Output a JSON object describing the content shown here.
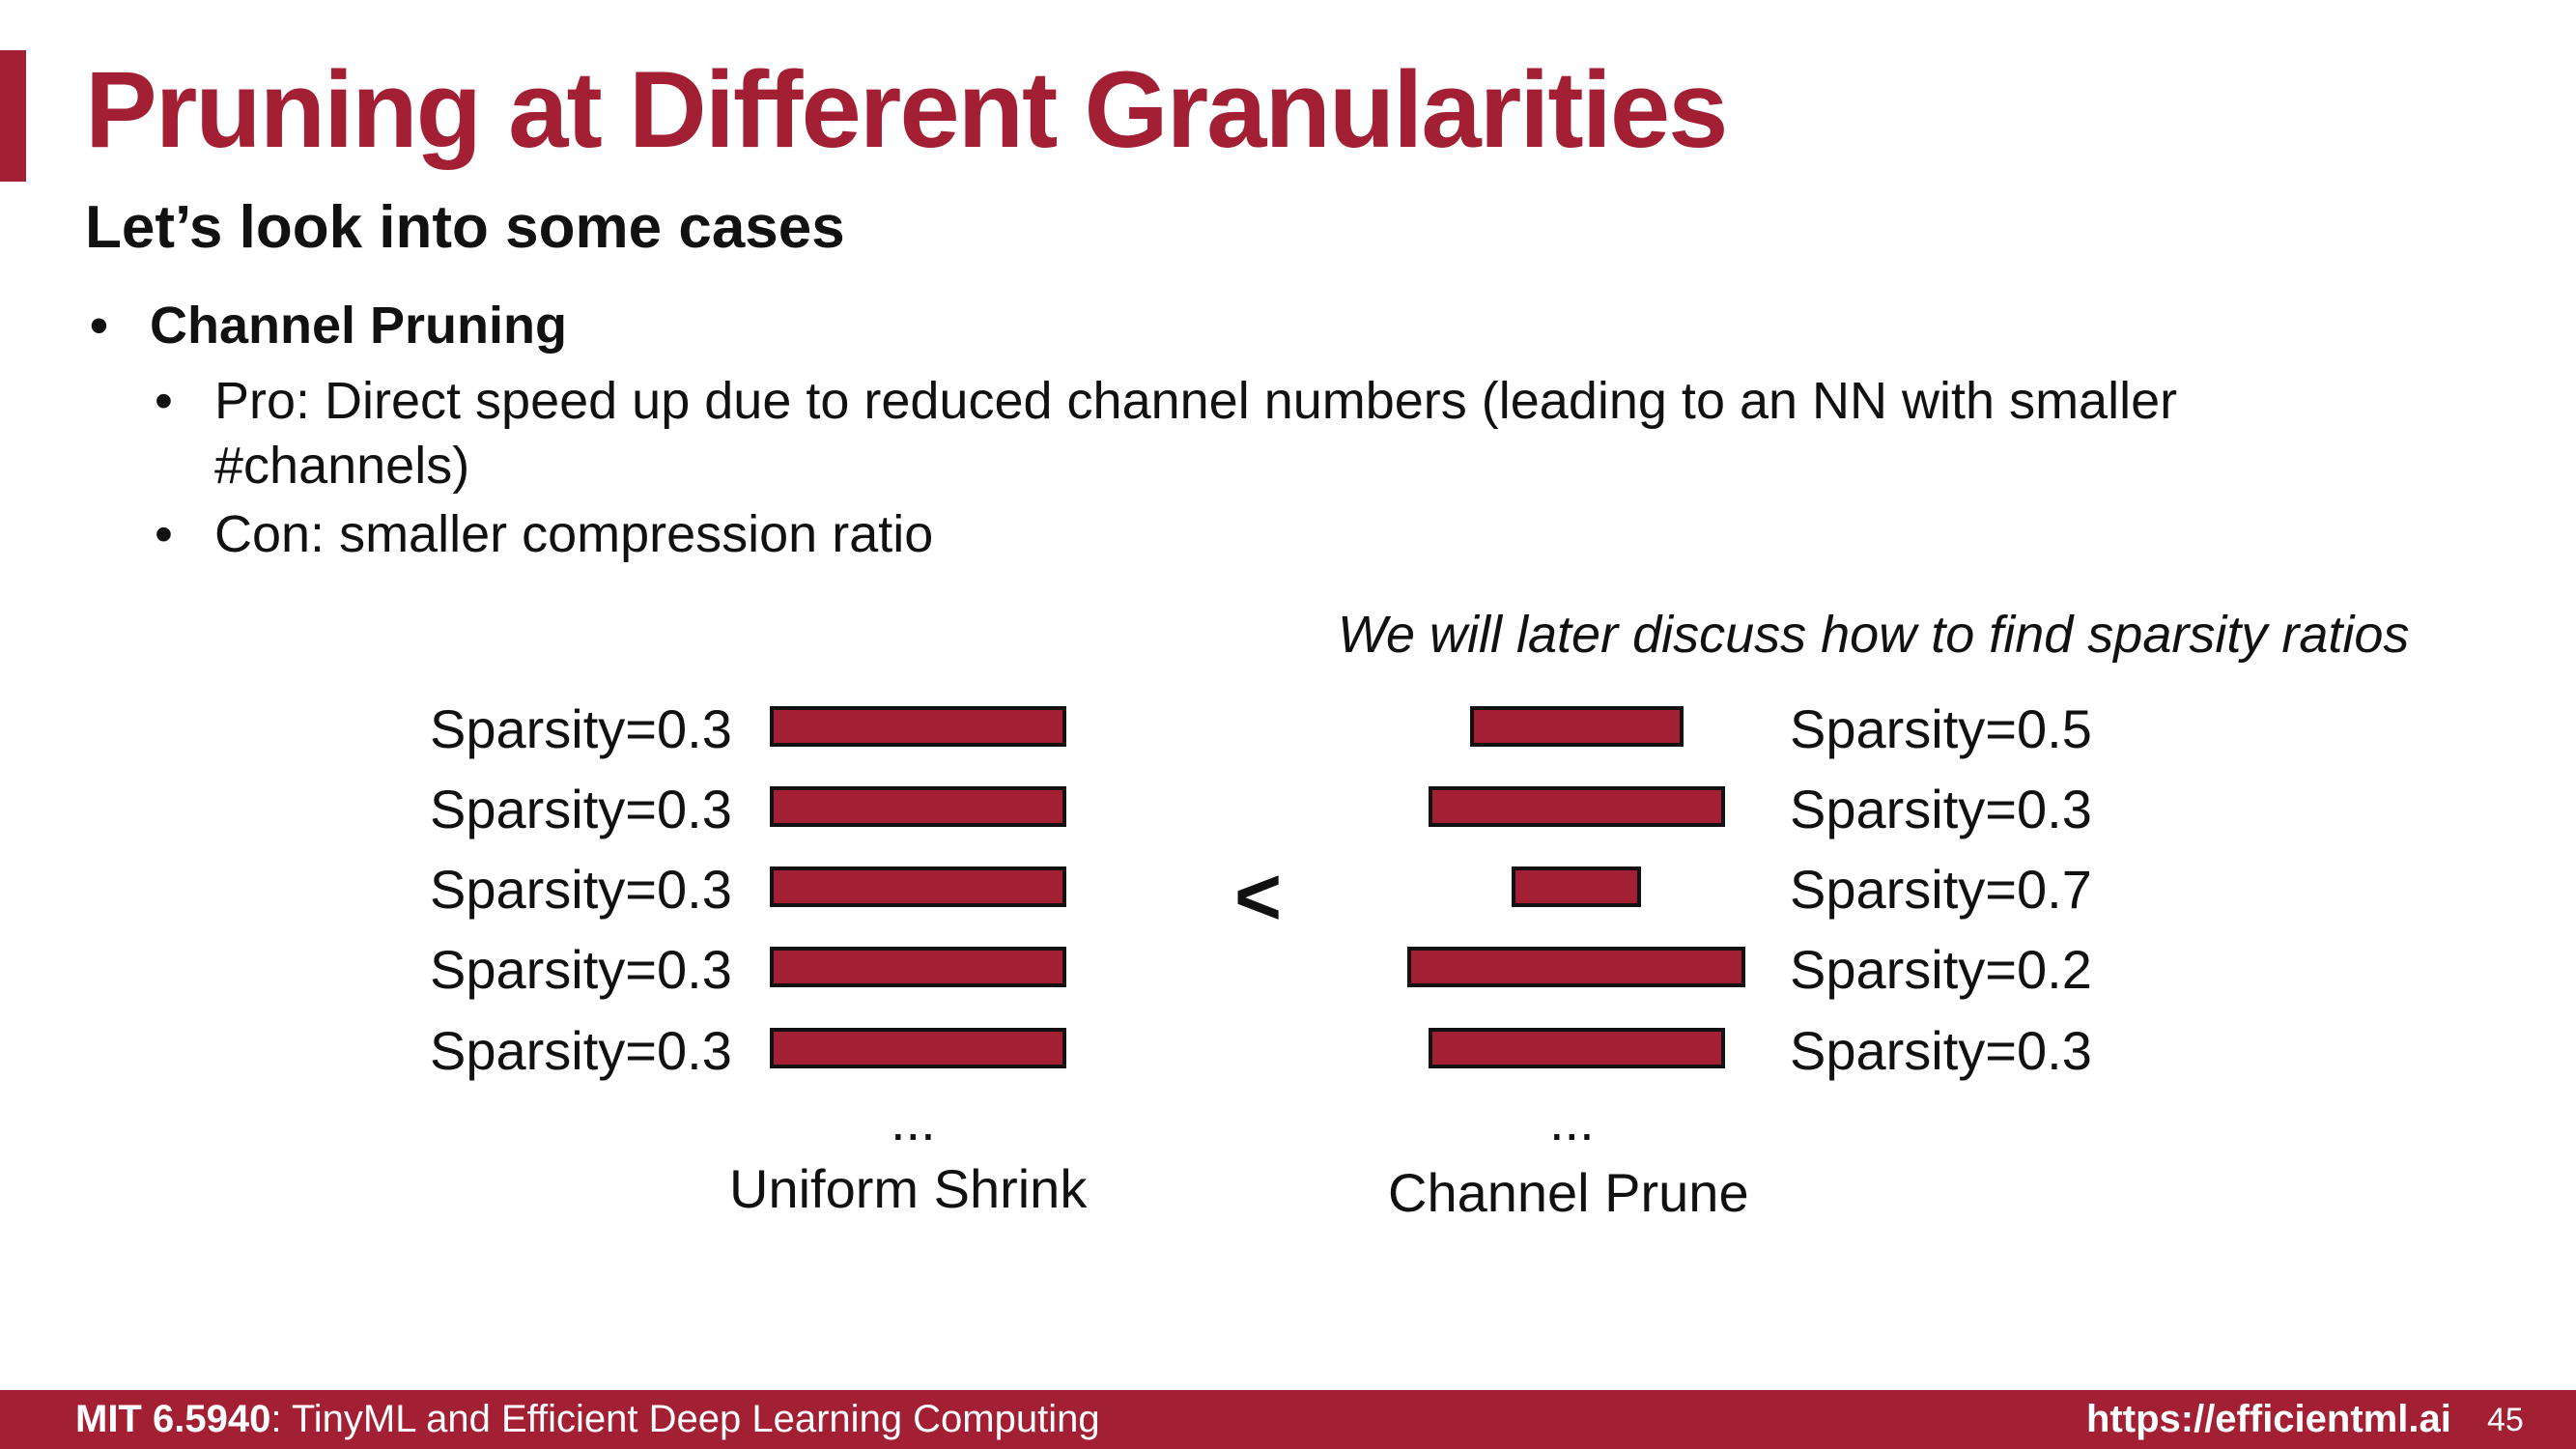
{
  "title": "Pruning at Different Granularities",
  "subtitle": "Let’s look into some cases",
  "bullets": {
    "dot": "•",
    "channel_pruning": "Channel Pruning",
    "pro_line1": "Pro: Direct speed up due to reduced channel numbers (leading to an NN with smaller",
    "pro_line2": "#channels)",
    "con": "Con: smaller compression ratio"
  },
  "note": "We will later discuss how to find sparsity ratios",
  "uniform": {
    "labels": [
      "Sparsity=0.3",
      "Sparsity=0.3",
      "Sparsity=0.3",
      "Sparsity=0.3",
      "Sparsity=0.3"
    ],
    "sparsity": [
      0.3,
      0.3,
      0.3,
      0.3,
      0.3
    ],
    "ellipsis": "...",
    "caption": "Uniform Shrink"
  },
  "comparison": "<",
  "channel": {
    "labels": [
      "Sparsity=0.5",
      "Sparsity=0.3",
      "Sparsity=0.7",
      "Sparsity=0.2",
      "Sparsity=0.3"
    ],
    "sparsity": [
      0.5,
      0.3,
      0.7,
      0.2,
      0.3
    ],
    "ellipsis": "...",
    "caption": "Channel Prune"
  },
  "colors": {
    "accent": "#a31f34",
    "text": "#111111"
  },
  "footer": {
    "course_code": "MIT 6.5940",
    "course_name": ": TinyML and Efficient Deep Learning Computing",
    "url": "https://efficientml.ai",
    "page": "45"
  }
}
